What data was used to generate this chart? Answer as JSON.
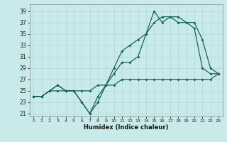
{
  "xlabel": "Humidex (Indice chaleur)",
  "background_color": "#c8eaea",
  "grid_color": "#b8dada",
  "line_color": "#1a6060",
  "x_ticks": [
    0,
    1,
    2,
    3,
    4,
    5,
    6,
    7,
    8,
    9,
    10,
    11,
    12,
    13,
    14,
    15,
    16,
    17,
    18,
    19,
    20,
    21,
    22,
    23
  ],
  "y_ticks": [
    21,
    23,
    25,
    27,
    29,
    31,
    33,
    35,
    37,
    39
  ],
  "ylim": [
    20.5,
    40.2
  ],
  "xlim": [
    -0.5,
    23.5
  ],
  "line1": {
    "x": [
      0,
      1,
      2,
      3,
      4,
      5,
      6,
      7,
      8,
      9,
      10,
      11,
      12,
      13,
      14,
      15,
      16,
      17,
      18,
      19,
      20,
      21,
      22,
      23
    ],
    "y": [
      24,
      24,
      25,
      26,
      25,
      25,
      23,
      21,
      23,
      26,
      28,
      30,
      30,
      31,
      35,
      39,
      37,
      38,
      37,
      37,
      36,
      29,
      28,
      28
    ]
  },
  "line2": {
    "x": [
      0,
      1,
      2,
      3,
      4,
      5,
      6,
      7,
      8,
      9,
      10,
      11,
      12,
      13,
      14,
      15,
      16,
      17,
      18,
      19,
      20,
      21,
      22,
      23
    ],
    "y": [
      24,
      24,
      25,
      26,
      25,
      25,
      23,
      21,
      24,
      26,
      29,
      32,
      33,
      34,
      35,
      37,
      38,
      38,
      38,
      37,
      37,
      34,
      29,
      28
    ]
  },
  "line3": {
    "x": [
      0,
      1,
      2,
      3,
      4,
      5,
      6,
      7,
      8,
      9,
      10,
      11,
      12,
      13,
      14,
      15,
      16,
      17,
      18,
      19,
      20,
      21,
      22,
      23
    ],
    "y": [
      24,
      24,
      25,
      25,
      25,
      25,
      25,
      25,
      26,
      26,
      26,
      27,
      27,
      27,
      27,
      27,
      27,
      27,
      27,
      27,
      27,
      27,
      27,
      28
    ]
  }
}
